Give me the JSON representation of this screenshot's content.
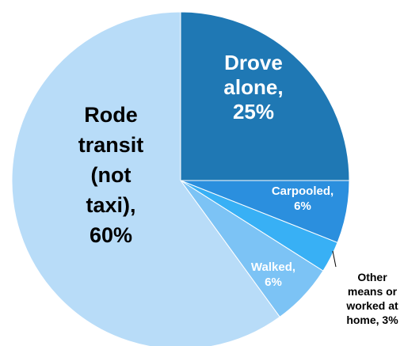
{
  "chart_data": {
    "type": "pie",
    "categories": [
      "Drove alone",
      "Carpooled",
      "Other means or worked at home",
      "Walked",
      "Rode transit (not taxi)"
    ],
    "values": [
      25,
      6,
      3,
      6,
      60
    ],
    "colors": [
      "#1f78b4",
      "#2b8fde",
      "#38b0f5",
      "#7cc3f5",
      "#b8dcf8"
    ],
    "labels": [
      [
        "Drove",
        "alone,",
        "25%"
      ],
      [
        "Carpooled,",
        "6%"
      ],
      [
        "Other",
        "means or",
        "worked at",
        "home, 3%"
      ],
      [
        "Walked,",
        "6%"
      ],
      [
        "Rode",
        "transit",
        "(not",
        "taxi),",
        "60%"
      ]
    ],
    "legend": "none"
  }
}
